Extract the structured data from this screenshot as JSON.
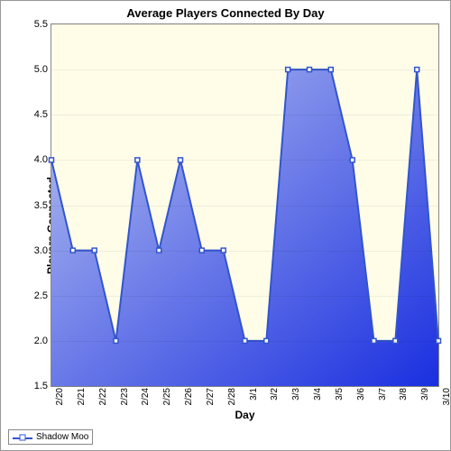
{
  "chart": {
    "type": "area",
    "title": "Average Players Connected By Day",
    "title_fontsize": 13,
    "title_fontweight": "bold",
    "xlabel": "Day",
    "ylabel": "Players Connected",
    "label_fontsize": 12,
    "label_fontweight": "bold",
    "ylim": [
      1.5,
      5.5
    ],
    "ytick_step": 0.5,
    "yticks": [
      "1.5",
      "2.0",
      "2.5",
      "3.0",
      "3.5",
      "4.0",
      "4.5",
      "5.0",
      "5.5"
    ],
    "categories": [
      "2/20",
      "2/21",
      "2/22",
      "2/23",
      "2/24",
      "2/25",
      "2/26",
      "2/27",
      "2/28",
      "3/1",
      "3/2",
      "3/3",
      "3/4",
      "3/5",
      "3/6",
      "3/7",
      "3/8",
      "3/9",
      "3/10"
    ],
    "values": [
      4,
      3,
      3,
      2,
      4,
      3,
      4,
      3,
      3,
      2,
      2,
      5,
      5,
      5,
      4,
      2,
      2,
      5,
      2
    ],
    "data_left_pad": true,
    "line_color": "#3355cc",
    "line_width": 2,
    "marker_style": "square",
    "marker_size": 5,
    "marker_fill": "#ffffff",
    "marker_stroke": "#3355cc",
    "area_gradient_from": "#b8c3f0",
    "area_gradient_to": "#1a2fe0",
    "background_color": "#fffde8",
    "grid_color": "rgba(0,0,0,0.06)",
    "border_color": "#888888",
    "tick_fontsize": 11,
    "xtick_fontsize": 10,
    "xtick_rotation": -90,
    "legend": {
      "position": "bottom-left",
      "items": [
        {
          "label": "Shadow Moo",
          "color": "#3355cc",
          "marker": "square"
        }
      ]
    }
  }
}
